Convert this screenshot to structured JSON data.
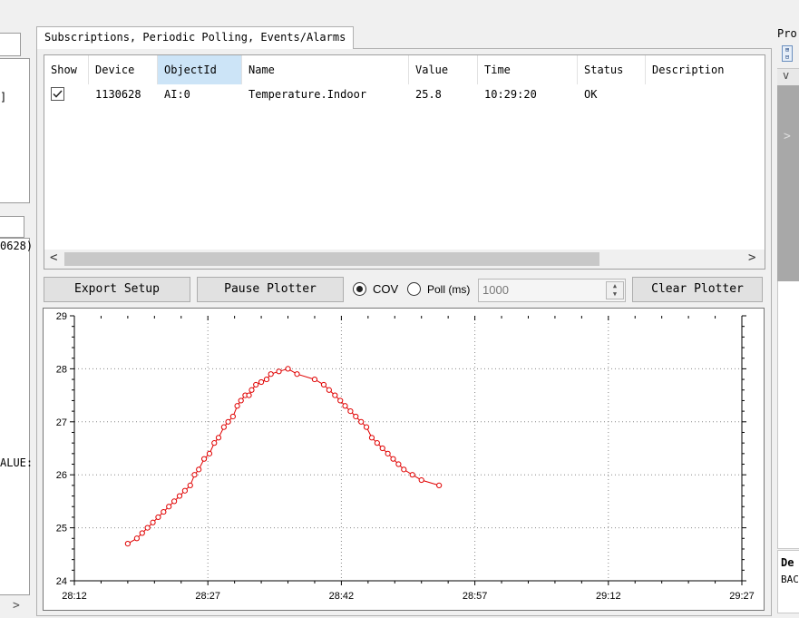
{
  "tab": {
    "label": "Subscriptions, Periodic Polling, Events/Alarms"
  },
  "left": {
    "bracket": "]",
    "frag1": "0628)",
    "frag2": "ALUE:",
    "scroll_arrow": ">"
  },
  "grid": {
    "columns": [
      "Show",
      "Device",
      "ObjectId",
      "Name",
      "Value",
      "Time",
      "Status",
      "Description"
    ],
    "rows": [
      {
        "show": true,
        "device": "1130628",
        "object_id": "AI:0",
        "name": "Temperature.Indoor",
        "value": "25.8",
        "time": "10:29:20",
        "status": "OK",
        "description": ""
      }
    ],
    "scroll_left": "<",
    "scroll_right": ">"
  },
  "toolbar": {
    "export_label": "Export Setup",
    "pause_label": "Pause Plotter",
    "cov_label": "COV",
    "poll_label": "Poll (ms)",
    "poll_value": "1000",
    "clear_label": "Clear Plotter",
    "mode": "COV"
  },
  "right_panel": {
    "title": "Pro",
    "collapse": "v",
    "expand": ">",
    "desc_title": "De",
    "desc_text": "BAC"
  },
  "chart_data": {
    "type": "line",
    "x_labels": [
      "28:12",
      "28:27",
      "28:42",
      "28:57",
      "29:12",
      "29:27"
    ],
    "x_minutes": [
      28.2,
      29.45
    ],
    "y_ticks": [
      24,
      25,
      26,
      27,
      28,
      29
    ],
    "ylim": [
      24,
      29
    ],
    "grid": true,
    "color": "#e00000",
    "points": [
      [
        28.3,
        24.7
      ],
      [
        28.317,
        24.8
      ],
      [
        28.327,
        24.9
      ],
      [
        28.337,
        25.0
      ],
      [
        28.347,
        25.1
      ],
      [
        28.357,
        25.2
      ],
      [
        28.367,
        25.3
      ],
      [
        28.377,
        25.4
      ],
      [
        28.387,
        25.5
      ],
      [
        28.397,
        25.6
      ],
      [
        28.407,
        25.7
      ],
      [
        28.417,
        25.8
      ],
      [
        28.425,
        26.0
      ],
      [
        28.433,
        26.1
      ],
      [
        28.443,
        26.3
      ],
      [
        28.453,
        26.4
      ],
      [
        28.462,
        26.6
      ],
      [
        28.47,
        26.7
      ],
      [
        28.48,
        26.9
      ],
      [
        28.488,
        27.0
      ],
      [
        28.497,
        27.1
      ],
      [
        28.505,
        27.3
      ],
      [
        28.512,
        27.4
      ],
      [
        28.52,
        27.5
      ],
      [
        28.527,
        27.5
      ],
      [
        28.532,
        27.6
      ],
      [
        28.54,
        27.7
      ],
      [
        28.55,
        27.75
      ],
      [
        28.56,
        27.8
      ],
      [
        28.568,
        27.9
      ],
      [
        28.583,
        27.95
      ],
      [
        28.6,
        28.0
      ],
      [
        28.617,
        27.9
      ],
      [
        28.65,
        27.8
      ],
      [
        28.667,
        27.7
      ],
      [
        28.677,
        27.6
      ],
      [
        28.688,
        27.5
      ],
      [
        28.698,
        27.4
      ],
      [
        28.707,
        27.3
      ],
      [
        28.717,
        27.2
      ],
      [
        28.727,
        27.1
      ],
      [
        28.737,
        27.0
      ],
      [
        28.747,
        26.9
      ],
      [
        28.757,
        26.7
      ],
      [
        28.767,
        26.6
      ],
      [
        28.777,
        26.5
      ],
      [
        28.787,
        26.4
      ],
      [
        28.797,
        26.3
      ],
      [
        28.807,
        26.2
      ],
      [
        28.817,
        26.1
      ],
      [
        28.833,
        26.0
      ],
      [
        28.85,
        25.9
      ],
      [
        28.883,
        25.8
      ]
    ]
  }
}
